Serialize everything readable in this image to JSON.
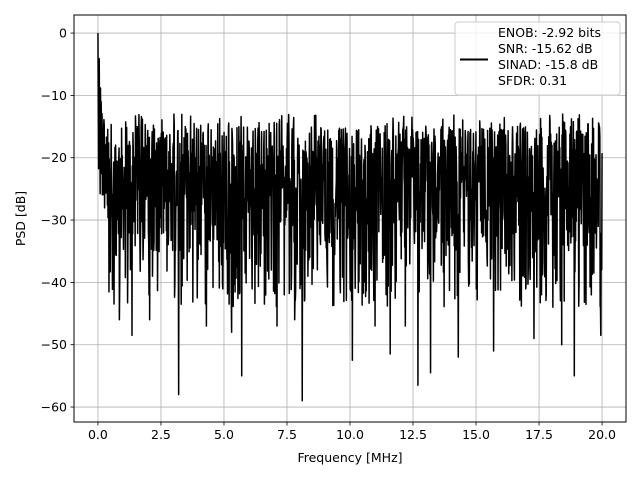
{
  "chart_data": {
    "type": "line",
    "title": "",
    "xlabel": "Frequency [MHz]",
    "ylabel": "PSD [dB]",
    "xlim": [
      -0.95,
      20.95
    ],
    "ylim": [
      -62.4,
      2.9
    ],
    "x_ticks": [
      0.0,
      2.5,
      5.0,
      7.5,
      10.0,
      12.5,
      15.0,
      17.5,
      20.0
    ],
    "x_tick_labels": [
      "0.0",
      "2.5",
      "5.0",
      "7.5",
      "10.0",
      "12.5",
      "15.0",
      "17.5",
      "20.0"
    ],
    "y_ticks": [
      0,
      -10,
      -20,
      -30,
      -40,
      -50,
      -60
    ],
    "y_tick_labels": [
      "0",
      "−10",
      "−20",
      "−30",
      "−40",
      "−50",
      "−60"
    ],
    "grid": true,
    "legend_position": "top-right",
    "legend_lines": [
      "ENOB: -2.92 bits",
      "SNR: -15.62 dB",
      "SINAD: -15.8 dB",
      "SFDR: 0.31"
    ],
    "series": [
      {
        "color": "#000000",
        "x_range": [
          0,
          20
        ],
        "typical_range": [
          -36,
          -15
        ],
        "peak": {
          "x": 0.0,
          "y": 0.0
        },
        "notable_dips": [
          {
            "x": 0.85,
            "y": -46
          },
          {
            "x": 1.35,
            "y": -48.5
          },
          {
            "x": 2.05,
            "y": -46
          },
          {
            "x": 3.2,
            "y": -58
          },
          {
            "x": 3.3,
            "y": -43.5
          },
          {
            "x": 4.3,
            "y": -47
          },
          {
            "x": 5.3,
            "y": -48
          },
          {
            "x": 5.7,
            "y": -55
          },
          {
            "x": 7.1,
            "y": -47
          },
          {
            "x": 8.1,
            "y": -59
          },
          {
            "x": 7.8,
            "y": -46
          },
          {
            "x": 10.1,
            "y": -52.5
          },
          {
            "x": 11.0,
            "y": -47
          },
          {
            "x": 11.6,
            "y": -51.5
          },
          {
            "x": 12.2,
            "y": -47
          },
          {
            "x": 12.7,
            "y": -56.5
          },
          {
            "x": 13.2,
            "y": -54.5
          },
          {
            "x": 14.3,
            "y": -52
          },
          {
            "x": 15.7,
            "y": -51
          },
          {
            "x": 17.3,
            "y": -49
          },
          {
            "x": 18.4,
            "y": -50
          },
          {
            "x": 18.9,
            "y": -55
          },
          {
            "x": 19.95,
            "y": -48.5
          }
        ]
      }
    ]
  }
}
